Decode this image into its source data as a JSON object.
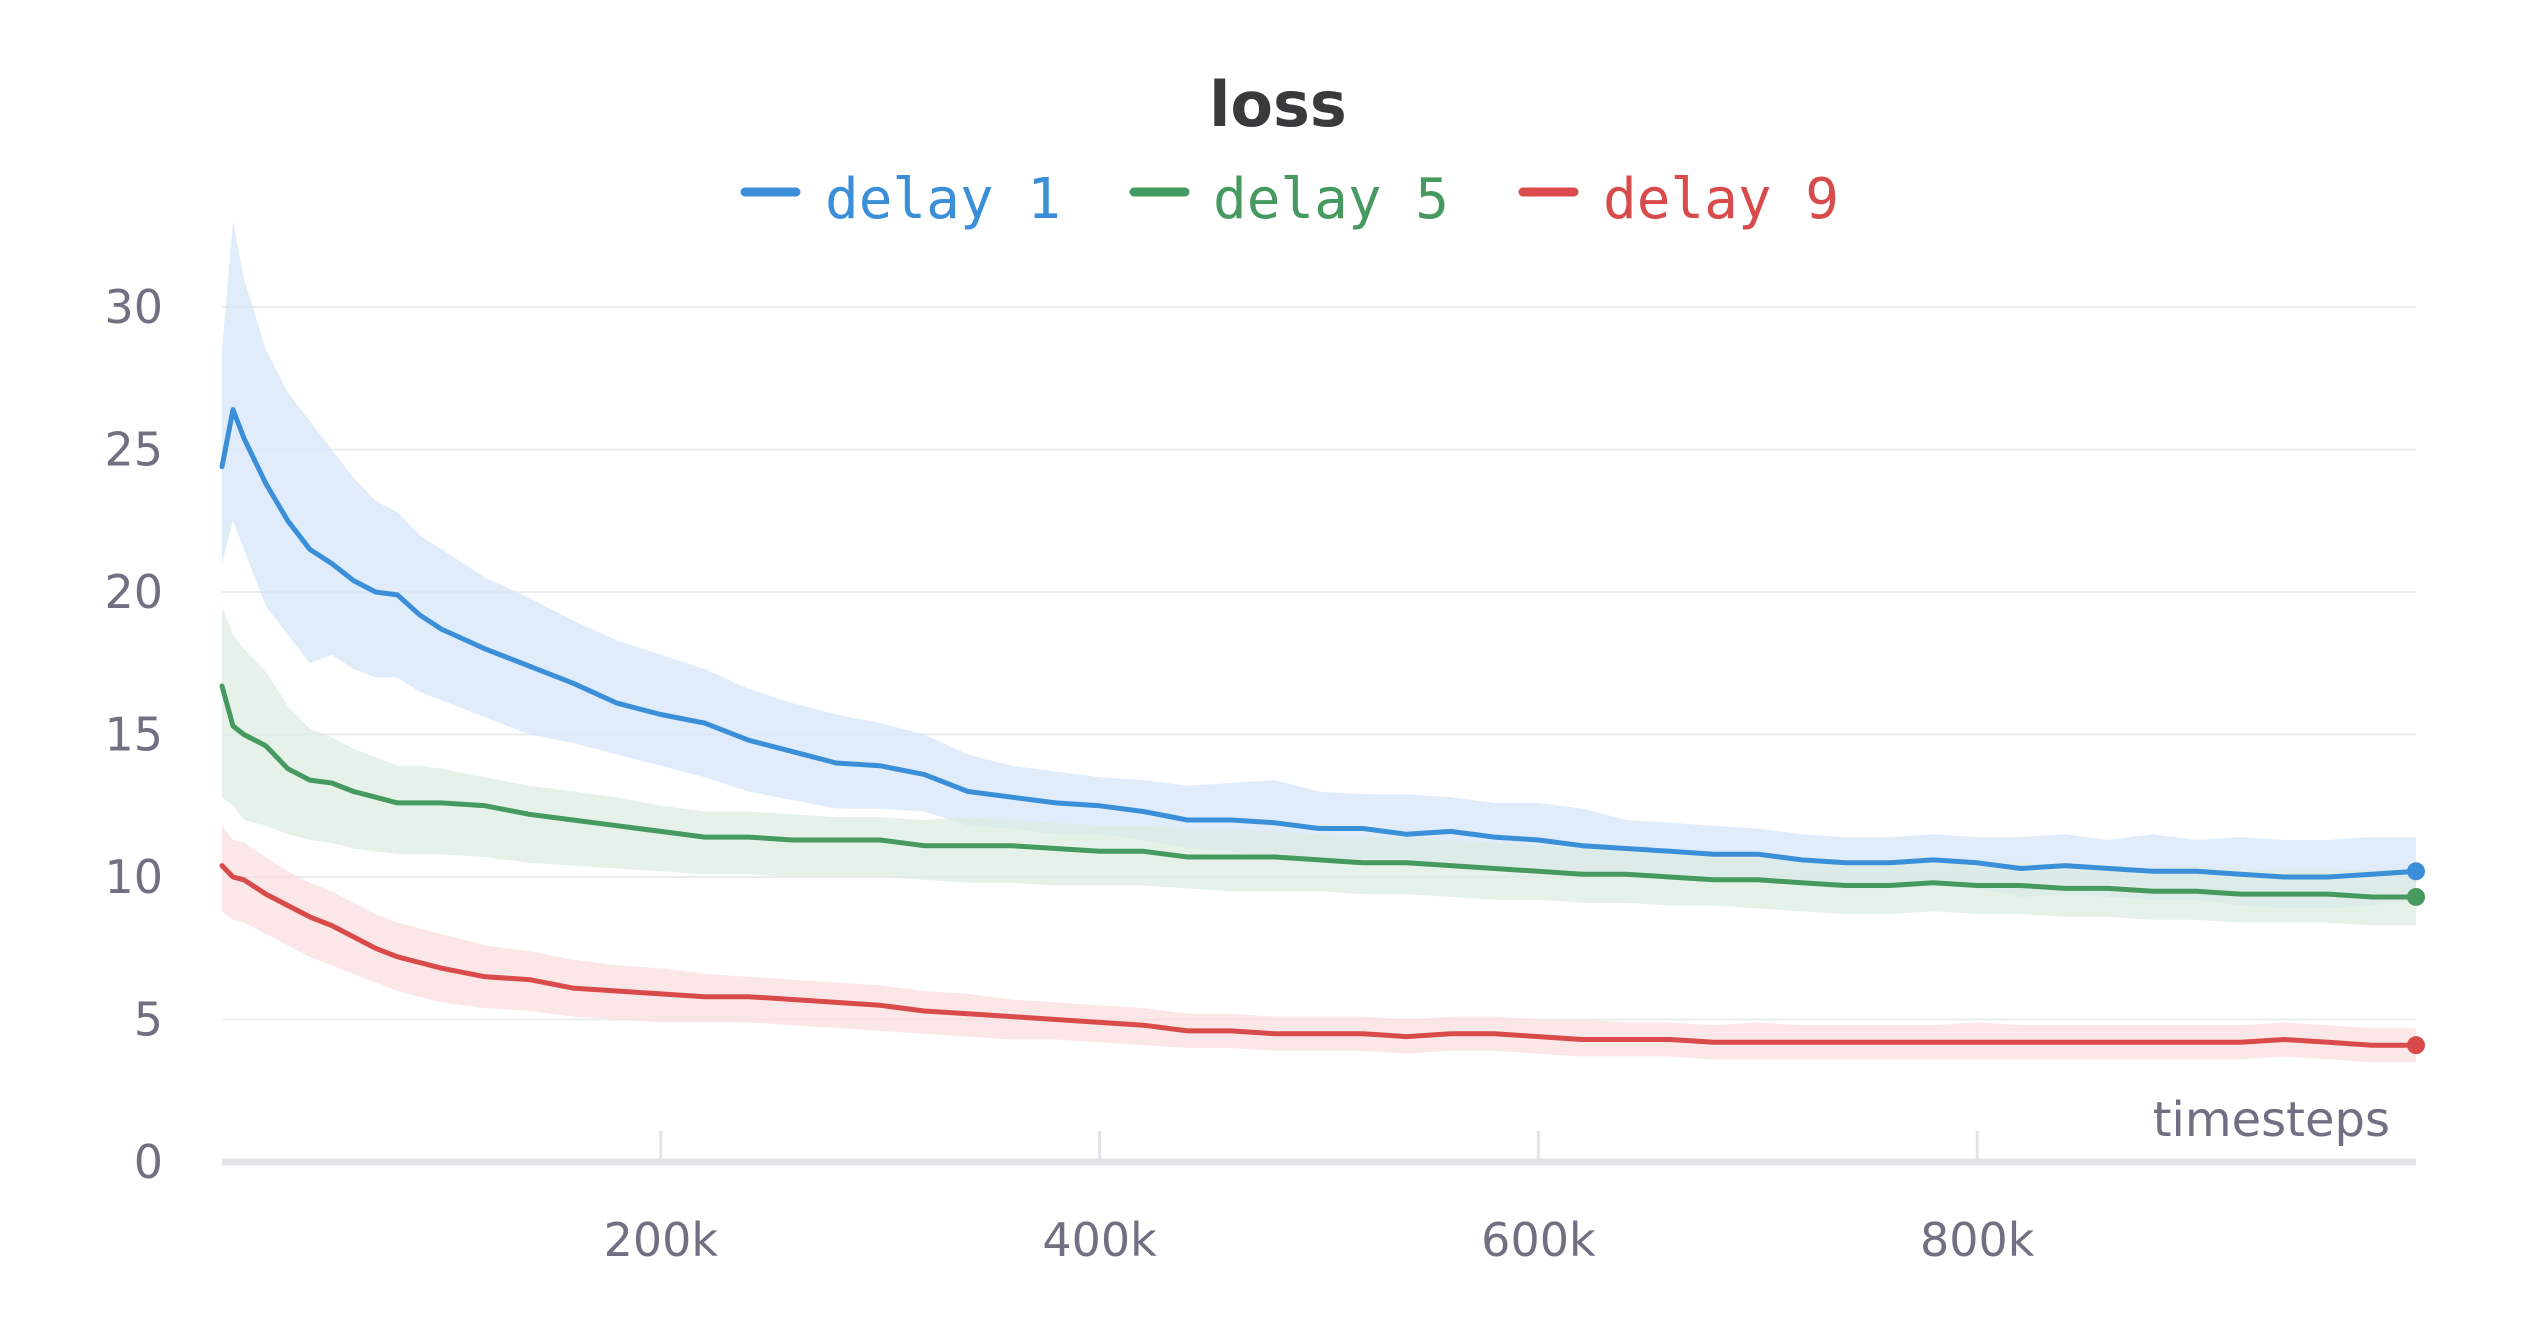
{
  "chart_data": {
    "type": "line",
    "title": "loss",
    "xlabel": "timesteps",
    "ylabel": "",
    "xlim": [
      0,
      1000000
    ],
    "ylim": [
      0,
      32
    ],
    "x_ticks": [
      200000,
      400000,
      600000,
      800000
    ],
    "x_tick_labels": [
      "200k",
      "400k",
      "600k",
      "800k"
    ],
    "y_ticks": [
      0,
      5,
      10,
      15,
      20,
      25,
      30
    ],
    "y_tick_labels": [
      "0",
      "5",
      "10",
      "15",
      "20",
      "25",
      "30"
    ],
    "grid": true,
    "legend_position": "top-center",
    "x": [
      0,
      5000,
      10000,
      20000,
      30000,
      40000,
      50000,
      60000,
      70000,
      80000,
      90000,
      100000,
      120000,
      140000,
      160000,
      180000,
      200000,
      220000,
      240000,
      260000,
      280000,
      300000,
      320000,
      340000,
      360000,
      380000,
      400000,
      420000,
      440000,
      460000,
      480000,
      500000,
      520000,
      540000,
      560000,
      580000,
      600000,
      620000,
      640000,
      660000,
      680000,
      700000,
      720000,
      740000,
      760000,
      780000,
      800000,
      820000,
      840000,
      860000,
      880000,
      900000,
      920000,
      940000,
      960000,
      980000,
      1000000
    ],
    "series": [
      {
        "name": "delay 1",
        "color": "#3b8fd9",
        "band_color": "#d6e6f8",
        "values": [
          24.4,
          26.4,
          25.4,
          23.8,
          22.5,
          21.5,
          21.0,
          20.4,
          20.0,
          19.9,
          19.2,
          18.7,
          18.0,
          17.4,
          16.8,
          16.1,
          15.7,
          15.4,
          14.8,
          14.4,
          14.0,
          13.9,
          13.6,
          13.0,
          12.8,
          12.6,
          12.5,
          12.3,
          12.0,
          12.0,
          11.9,
          11.7,
          11.7,
          11.5,
          11.6,
          11.4,
          11.3,
          11.1,
          11.0,
          10.9,
          10.8,
          10.8,
          10.6,
          10.5,
          10.5,
          10.6,
          10.5,
          10.3,
          10.4,
          10.3,
          10.2,
          10.2,
          10.1,
          10.0,
          10.0,
          10.1,
          10.2
        ],
        "upper": [
          28.5,
          33.0,
          31.0,
          28.5,
          27.0,
          26.0,
          25.0,
          24.0,
          23.2,
          22.8,
          22.0,
          21.5,
          20.5,
          19.8,
          19.0,
          18.3,
          17.8,
          17.3,
          16.6,
          16.1,
          15.7,
          15.4,
          15.0,
          14.3,
          13.9,
          13.7,
          13.5,
          13.4,
          13.2,
          13.3,
          13.4,
          13.0,
          12.9,
          12.9,
          12.8,
          12.6,
          12.6,
          12.4,
          12.0,
          11.9,
          11.8,
          11.7,
          11.5,
          11.4,
          11.4,
          11.5,
          11.4,
          11.4,
          11.5,
          11.3,
          11.5,
          11.3,
          11.4,
          11.3,
          11.3,
          11.4,
          11.4
        ],
        "lower": [
          21.0,
          22.5,
          21.5,
          19.5,
          18.5,
          17.5,
          17.8,
          17.3,
          17.0,
          17.0,
          16.5,
          16.2,
          15.6,
          15.0,
          14.7,
          14.3,
          13.9,
          13.5,
          13.0,
          12.7,
          12.4,
          12.4,
          12.3,
          11.8,
          11.7,
          11.5,
          11.5,
          11.3,
          11.0,
          10.9,
          10.7,
          10.6,
          10.6,
          10.4,
          10.5,
          10.3,
          10.2,
          10.0,
          10.0,
          9.9,
          9.8,
          9.8,
          9.7,
          9.6,
          9.6,
          9.7,
          9.6,
          9.3,
          9.4,
          9.3,
          9.2,
          9.2,
          9.0,
          8.9,
          8.9,
          9.0,
          9.2
        ]
      },
      {
        "name": "delay 5",
        "color": "#479a5f",
        "band_color": "#dcece2",
        "values": [
          16.7,
          15.3,
          15.0,
          14.6,
          13.8,
          13.4,
          13.3,
          13.0,
          12.8,
          12.6,
          12.6,
          12.6,
          12.5,
          12.2,
          12.0,
          11.8,
          11.6,
          11.4,
          11.4,
          11.3,
          11.3,
          11.3,
          11.1,
          11.1,
          11.1,
          11.0,
          10.9,
          10.9,
          10.7,
          10.7,
          10.7,
          10.6,
          10.5,
          10.5,
          10.4,
          10.3,
          10.2,
          10.1,
          10.1,
          10.0,
          9.9,
          9.9,
          9.8,
          9.7,
          9.7,
          9.8,
          9.7,
          9.7,
          9.6,
          9.6,
          9.5,
          9.5,
          9.4,
          9.4,
          9.4,
          9.3,
          9.3
        ],
        "upper": [
          19.5,
          18.5,
          18.0,
          17.2,
          16.0,
          15.2,
          14.9,
          14.5,
          14.2,
          13.9,
          13.9,
          13.8,
          13.5,
          13.2,
          13.0,
          12.8,
          12.5,
          12.3,
          12.3,
          12.2,
          12.1,
          12.1,
          12.0,
          12.1,
          12.0,
          11.9,
          11.8,
          11.8,
          11.7,
          11.7,
          11.6,
          11.5,
          11.4,
          11.4,
          11.3,
          11.2,
          11.1,
          11.0,
          11.0,
          10.8,
          10.8,
          10.7,
          10.6,
          10.6,
          10.6,
          10.5,
          10.5,
          10.5,
          10.4,
          10.4,
          10.3,
          10.4,
          10.2,
          10.3,
          10.3,
          10.2,
          10.3
        ],
        "lower": [
          12.8,
          12.5,
          12.0,
          11.8,
          11.5,
          11.3,
          11.2,
          11.0,
          10.9,
          10.8,
          10.8,
          10.8,
          10.7,
          10.5,
          10.4,
          10.3,
          10.2,
          10.1,
          10.1,
          10.0,
          10.0,
          10.0,
          9.9,
          9.8,
          9.8,
          9.7,
          9.7,
          9.7,
          9.6,
          9.5,
          9.5,
          9.5,
          9.4,
          9.4,
          9.3,
          9.2,
          9.2,
          9.1,
          9.1,
          9.0,
          9.0,
          8.9,
          8.8,
          8.7,
          8.7,
          8.8,
          8.7,
          8.7,
          8.6,
          8.6,
          8.5,
          8.5,
          8.4,
          8.4,
          8.4,
          8.3,
          8.3
        ]
      },
      {
        "name": "delay 9",
        "color": "#d94a4a",
        "band_color": "#f9dfdf",
        "values": [
          10.4,
          10.0,
          9.9,
          9.4,
          9.0,
          8.6,
          8.3,
          7.9,
          7.5,
          7.2,
          7.0,
          6.8,
          6.5,
          6.4,
          6.1,
          6.0,
          5.9,
          5.8,
          5.8,
          5.7,
          5.6,
          5.5,
          5.3,
          5.2,
          5.1,
          5.0,
          4.9,
          4.8,
          4.6,
          4.6,
          4.5,
          4.5,
          4.5,
          4.4,
          4.5,
          4.5,
          4.4,
          4.3,
          4.3,
          4.3,
          4.2,
          4.2,
          4.2,
          4.2,
          4.2,
          4.2,
          4.2,
          4.2,
          4.2,
          4.2,
          4.2,
          4.2,
          4.2,
          4.3,
          4.2,
          4.1,
          4.1
        ],
        "upper": [
          11.8,
          11.3,
          11.2,
          10.7,
          10.2,
          9.8,
          9.5,
          9.1,
          8.7,
          8.4,
          8.2,
          8.0,
          7.6,
          7.4,
          7.1,
          6.9,
          6.8,
          6.6,
          6.5,
          6.4,
          6.3,
          6.2,
          6.0,
          5.9,
          5.7,
          5.6,
          5.5,
          5.4,
          5.2,
          5.2,
          5.1,
          5.1,
          5.1,
          5.0,
          5.1,
          5.1,
          5.0,
          5.0,
          4.9,
          4.9,
          4.8,
          4.9,
          4.8,
          4.8,
          4.8,
          4.8,
          4.9,
          4.8,
          4.8,
          4.8,
          4.8,
          4.8,
          4.8,
          4.9,
          4.8,
          4.7,
          4.7
        ],
        "lower": [
          8.8,
          8.5,
          8.4,
          8.0,
          7.6,
          7.2,
          6.9,
          6.6,
          6.3,
          6.0,
          5.8,
          5.6,
          5.4,
          5.3,
          5.1,
          5.0,
          4.9,
          4.9,
          4.9,
          4.8,
          4.7,
          4.6,
          4.5,
          4.4,
          4.3,
          4.3,
          4.2,
          4.1,
          4.0,
          4.0,
          3.9,
          3.9,
          3.9,
          3.8,
          3.9,
          3.9,
          3.8,
          3.7,
          3.7,
          3.7,
          3.6,
          3.6,
          3.6,
          3.6,
          3.6,
          3.6,
          3.6,
          3.6,
          3.6,
          3.6,
          3.6,
          3.6,
          3.6,
          3.7,
          3.6,
          3.5,
          3.5
        ]
      }
    ]
  }
}
